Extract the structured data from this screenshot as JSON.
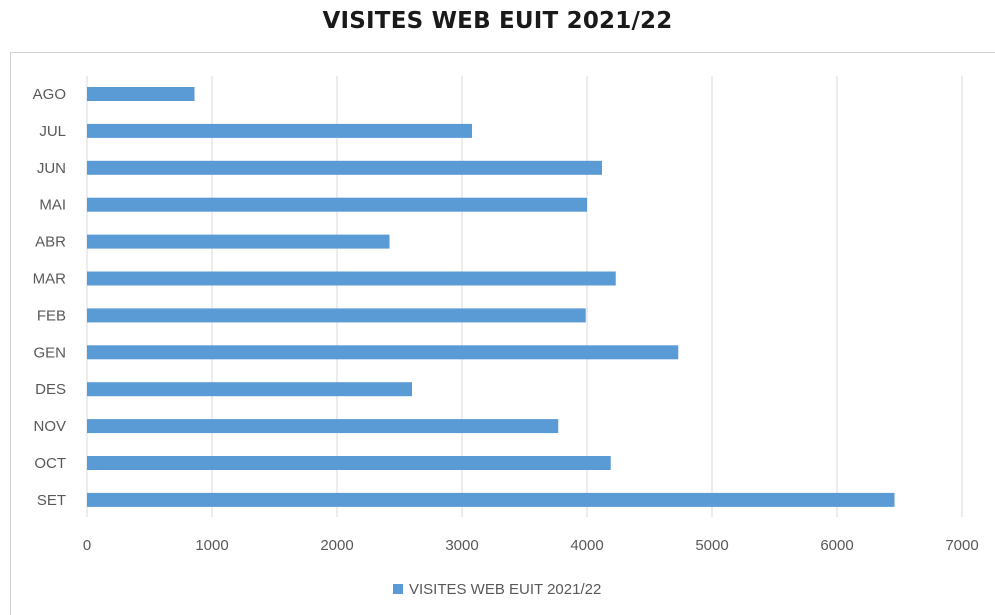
{
  "chart_data": {
    "type": "bar",
    "orientation": "horizontal",
    "title": "VISITES WEB EUIT 2021/22",
    "categories": [
      "SET",
      "OCT",
      "NOV",
      "DES",
      "GEN",
      "FEB",
      "MAR",
      "ABR",
      "MAI",
      "JUN",
      "JUL",
      "AGO"
    ],
    "series": [
      {
        "name": "VISITES WEB EUIT 2021/22",
        "color": "#5b9bd5",
        "values": [
          6460,
          4190,
          3770,
          2600,
          4730,
          3990,
          4230,
          2420,
          4000,
          4120,
          3080,
          860
        ]
      }
    ],
    "xlim": [
      0,
      7000
    ],
    "xticks": [
      "0",
      "1000",
      "2000",
      "3000",
      "4000",
      "5000",
      "6000",
      "7000"
    ],
    "grid": "vertical",
    "legend_position": "bottom"
  }
}
